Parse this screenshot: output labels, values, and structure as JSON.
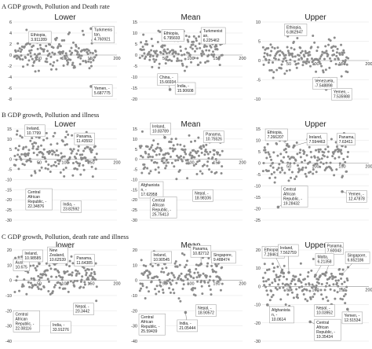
{
  "sections": [
    {
      "title": "A GDP growth, Pollution and Death rate"
    },
    {
      "title": "B GDP growth, Pollution and illness"
    },
    {
      "title": "C GDP growth, Pollution, death rate and illness"
    }
  ],
  "chart_data": [
    {
      "type": "scatter",
      "section": 0,
      "title": "Lower",
      "yticks": [
        6,
        4,
        2,
        0,
        -2,
        -4,
        -6,
        -8
      ],
      "xticks": [
        50,
        100,
        150,
        200
      ],
      "xlim": [
        0,
        200
      ],
      "ylim": [
        -8,
        6
      ],
      "annotations": [
        {
          "lines": [
            "Ethiopia,",
            "3.911289"
          ],
          "x": 45,
          "y": 3.9,
          "box": [
            30,
            4.3
          ]
        },
        {
          "lines": [
            "Turkmenis",
            "tan,",
            "4.760921"
          ],
          "x": 150,
          "y": 4.8,
          "box": [
            152,
            5.2
          ]
        },
        {
          "lines": [
            "Yemen, -",
            "5.687775"
          ],
          "x": 150,
          "y": -5.7,
          "box": [
            152,
            -5.4
          ]
        }
      ]
    },
    {
      "type": "scatter",
      "section": 0,
      "title": "Mean",
      "yticks": [
        15,
        10,
        5,
        0,
        -5,
        -10,
        -15,
        -20
      ],
      "xticks": [
        50,
        100,
        150,
        200
      ],
      "xlim": [
        0,
        200
      ],
      "ylim": [
        -20,
        15
      ],
      "annotations": [
        {
          "lines": [
            "Ethiopia,",
            "6.795693"
          ],
          "x": 50,
          "y": 6.8,
          "box": [
            44,
            11.5
          ]
        },
        {
          "lines": [
            "Turkmenist",
            "an,",
            "6.225462"
          ],
          "x": 150,
          "y": 6.2,
          "box": [
            120,
            12.5
          ]
        },
        {
          "lines": [
            "China, -",
            "15.66934"
          ],
          "x": 60,
          "y": -15.7,
          "box": [
            36,
            -8.5
          ]
        },
        {
          "lines": [
            "India, -",
            "15.90608"
          ],
          "x": 82,
          "y": -15.9,
          "box": [
            70,
            -12.5
          ]
        }
      ]
    },
    {
      "type": "scatter",
      "section": 0,
      "title": "Upper",
      "yticks": [
        10,
        5,
        0,
        -5,
        -10
      ],
      "xticks": [
        50,
        100,
        150,
        200
      ],
      "xlim": [
        0,
        200
      ],
      "ylim": [
        -10,
        10
      ],
      "annotations": [
        {
          "lines": [
            "Ethiopia,",
            "6.862947"
          ],
          "x": 50,
          "y": 6.9,
          "box": [
            42,
            9.5
          ]
        },
        {
          "lines": [
            "Venezuela,",
            "-7.548898"
          ],
          "x": 120,
          "y": -7.5,
          "box": [
            95,
            -4.4
          ]
        },
        {
          "lines": [
            "Yemen, -",
            "7.535988"
          ],
          "x": 150,
          "y": -7.5,
          "box": [
            130,
            -7.2
          ]
        }
      ]
    },
    {
      "type": "scatter",
      "section": 1,
      "title": "Lower",
      "yticks": [
        15,
        10,
        5,
        0,
        -5,
        -10,
        -15,
        -20,
        -25,
        -30
      ],
      "xticks": [
        50,
        100,
        150,
        200
      ],
      "xlim": [
        0,
        200
      ],
      "ylim": [
        -30,
        15
      ],
      "annotations": [
        {
          "lines": [
            "Ireland,",
            "10.7799"
          ],
          "x": 50,
          "y": 10.8,
          "box": [
            22,
            17
          ]
        },
        {
          "lines": [
            "Panama,",
            "11.43592"
          ],
          "x": 150,
          "y": 11.4,
          "box": [
            118,
            13
          ]
        },
        {
          "lines": [
            "Central",
            "African",
            "Republic, -",
            "22.34876"
          ],
          "x": 30,
          "y": -22.3,
          "box": [
            24,
            -14.5
          ]
        },
        {
          "lines": [
            "India, -",
            "23.82592"
          ],
          "x": 120,
          "y": -23.8,
          "box": [
            92,
            -20.5
          ]
        }
      ]
    },
    {
      "type": "scatter",
      "section": 1,
      "title": "Mean",
      "yticks": [
        15,
        10,
        5,
        0,
        -5,
        -10,
        -15,
        -20,
        -25,
        -30
      ],
      "xticks": [
        50,
        100,
        150,
        200
      ],
      "xlim": [
        0,
        200
      ],
      "ylim": [
        -30,
        15
      ],
      "annotations": [
        {
          "lines": [
            "Ireland,",
            "10.83789"
          ],
          "x": 50,
          "y": 10.8,
          "box": [
            22,
            18
          ]
        },
        {
          "lines": [
            "Panama,",
            "10.75526"
          ],
          "x": 150,
          "y": 10.8,
          "box": [
            125,
            14
          ]
        },
        {
          "lines": [
            "Afghanista",
            "n, -",
            "17.62958"
          ],
          "x": 10,
          "y": -17.6,
          "box": [
            0,
            -11
          ]
        },
        {
          "lines": [
            "Nepal, -",
            "18.98106"
          ],
          "x": 120,
          "y": -19,
          "box": [
            104,
            -15
          ]
        },
        {
          "lines": [
            "Central",
            "African",
            "Republic, -",
            "25.75413"
          ],
          "x": 30,
          "y": -25.8,
          "box": [
            22,
            -18.5
          ]
        }
      ]
    },
    {
      "type": "scatter",
      "section": 1,
      "title": "Upper",
      "yticks": [
        15,
        10,
        5,
        0,
        -5,
        -10,
        -15,
        -20,
        -25
      ],
      "xticks": [
        50,
        100,
        150,
        200
      ],
      "xlim": [
        0,
        200
      ],
      "ylim": [
        -25,
        15
      ],
      "annotations": [
        {
          "lines": [
            "Ethiopia,",
            "7.266207"
          ],
          "x": 50,
          "y": 7.3,
          "box": [
            6,
            15
          ]
        },
        {
          "lines": [
            "Ireland,",
            "7.594463"
          ],
          "x": 60,
          "y": 7.6,
          "box": [
            84,
            13
          ]
        },
        {
          "lines": [
            "Panama,",
            "7.63411"
          ],
          "x": 150,
          "y": 7.6,
          "box": [
            140,
            13
          ]
        },
        {
          "lines": [
            "Central",
            "African",
            "Republic, -",
            "19.28432"
          ],
          "x": 30,
          "y": -19.3,
          "box": [
            36,
            -10
          ]
        },
        {
          "lines": [
            "Yemen, -",
            "12.47878"
          ],
          "x": 150,
          "y": -12.5,
          "box": [
            158,
            -12
          ]
        }
      ]
    },
    {
      "type": "scatter",
      "section": 2,
      "title": "lower",
      "yticks": [
        20,
        10,
        0,
        -10,
        -20,
        -30,
        -40
      ],
      "xticks": [
        50,
        100,
        150,
        200
      ],
      "xlim": [
        0,
        200
      ],
      "ylim": [
        -40,
        20
      ],
      "annotations": [
        {
          "lines": [
            "Aust",
            "10.675"
          ],
          "x": 20,
          "y": 10.7,
          "box": [
            0,
            14
          ]
        },
        {
          "lines": [
            "Ireland,",
            "10.98585"
          ],
          "x": 50,
          "y": 11,
          "box": [
            18,
            20
          ]
        },
        {
          "lines": [
            "New",
            "Zealand,",
            "10.62539"
          ],
          "x": 80,
          "y": 10.6,
          "box": [
            66,
            22
          ]
        },
        {
          "lines": [
            "Panama,",
            "11.64385"
          ],
          "x": 150,
          "y": 11.6,
          "box": [
            118,
            17
          ]
        },
        {
          "lines": [
            "Nepal, -",
            "20.3442"
          ],
          "x": 120,
          "y": -20.3,
          "box": [
            116,
            -15
          ]
        },
        {
          "lines": [
            "India, -",
            "33.91276"
          ],
          "x": 90,
          "y": -33.9,
          "box": [
            72,
            -27
          ]
        },
        {
          "lines": [
            "Central",
            "African",
            "Republic, -",
            "22.08116"
          ],
          "x": 25,
          "y": -22.1,
          "box": [
            0,
            -20
          ]
        }
      ]
    },
    {
      "type": "scatter",
      "section": 2,
      "title": "Mean",
      "yticks": [
        20,
        10,
        0,
        -10,
        -20,
        -30,
        -40
      ],
      "xticks": [
        50,
        100,
        150,
        200
      ],
      "xlim": [
        0,
        200
      ],
      "ylim": [
        -40,
        20
      ],
      "annotations": [
        {
          "lines": [
            "Ireland,",
            "10.90545"
          ],
          "x": 50,
          "y": 10.9,
          "box": [
            24,
            19
          ]
        },
        {
          "lines": [
            "Panama,",
            "10.82712"
          ],
          "x": 120,
          "y": 10.8,
          "box": [
            100,
            23
          ]
        },
        {
          "lines": [
            "Singapore,",
            "9.488474"
          ],
          "x": 150,
          "y": 9.5,
          "box": [
            140,
            19
          ]
        },
        {
          "lines": [
            "Nepal, -",
            "18.90572"
          ],
          "x": 120,
          "y": -18.9,
          "box": [
            110,
            -16
          ]
        },
        {
          "lines": [
            "India, -",
            "21.05444"
          ],
          "x": 90,
          "y": -21.1,
          "box": [
            74,
            -26
          ]
        },
        {
          "lines": [
            "Central",
            "African",
            "Republic, -",
            "25.59439"
          ],
          "x": 30,
          "y": -25.6,
          "box": [
            0,
            -22
          ]
        }
      ]
    },
    {
      "type": "scatter",
      "section": 2,
      "title": "Upper",
      "yticks": [
        20,
        10,
        0,
        -10,
        -20,
        -30
      ],
      "xticks": [
        50,
        100,
        150,
        200
      ],
      "xlim": [
        0,
        200
      ],
      "ylim": [
        -30,
        20
      ],
      "annotations": [
        {
          "lines": [
            "Ethiopia,",
            "7.284614"
          ],
          "x": 40,
          "y": 7.3,
          "box": [
            0,
            22
          ]
        },
        {
          "lines": [
            "Ireland,",
            "7.562759"
          ],
          "x": 50,
          "y": 7.6,
          "box": [
            30,
            23
          ]
        },
        {
          "lines": [
            "Panama,",
            "7.60043"
          ],
          "x": 120,
          "y": 7.6,
          "box": [
            118,
            24
          ]
        },
        {
          "lines": [
            "Malta,",
            "6.21358"
          ],
          "x": 100,
          "y": 6.2,
          "box": [
            100,
            18
          ]
        },
        {
          "lines": [
            "Singapore,",
            "6.652186"
          ],
          "x": 150,
          "y": 6.7,
          "box": [
            156,
            19
          ]
        },
        {
          "lines": [
            "Afghanista",
            "n, -",
            "10.0614"
          ],
          "x": 10,
          "y": -10.1,
          "box": [
            14,
            -11
          ]
        },
        {
          "lines": [
            "Nepal, -",
            "10.03952"
          ],
          "x": 130,
          "y": -10,
          "box": [
            98,
            -10
          ]
        },
        {
          "lines": [
            "Yemen, -",
            "12.51534"
          ],
          "x": 160,
          "y": -12.5,
          "box": [
            150,
            -14
          ]
        },
        {
          "lines": [
            "Central",
            "African",
            "Republic, -",
            "19.35434"
          ],
          "x": 90,
          "y": -19.4,
          "box": [
            98,
            -18
          ]
        }
      ]
    }
  ]
}
